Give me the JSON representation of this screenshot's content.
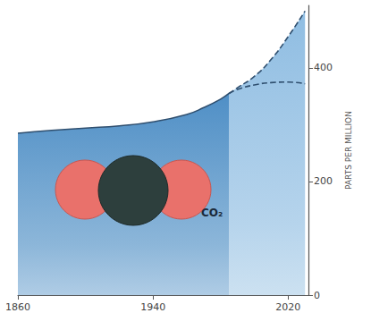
{
  "chart_data": {
    "type": "area",
    "y_label": "PARTS PER MILLION",
    "annotations": [
      "CO₂"
    ],
    "x": [
      1860,
      1880,
      1900,
      1920,
      1940,
      1960,
      1970,
      1980,
      1985,
      1990,
      2000,
      2010,
      2020,
      2030
    ],
    "series": [
      {
        "color": "#8fbde2",
        "line_style": "dashed",
        "values": [
          null,
          null,
          null,
          null,
          null,
          null,
          null,
          null,
          355,
          365,
          385,
          415,
          455,
          500
        ]
      },
      {
        "color": "#4f8fc6",
        "line_style": "solid",
        "values": [
          285,
          290,
          294,
          298,
          305,
          318,
          330,
          345,
          355,
          null,
          null,
          null,
          null,
          null
        ]
      },
      {
        "type": "line",
        "color": "#2f4f6f",
        "line_style": "dashed",
        "values": [
          null,
          null,
          null,
          null,
          null,
          null,
          null,
          null,
          355,
          362,
          370,
          374,
          375,
          372
        ]
      }
    ],
    "xlim": [
      1860,
      2032
    ],
    "xticks": [
      1860,
      1940,
      2020
    ],
    "ylim": [
      0,
      510
    ],
    "yticks": [
      0,
      200,
      400
    ],
    "grid": false
  }
}
